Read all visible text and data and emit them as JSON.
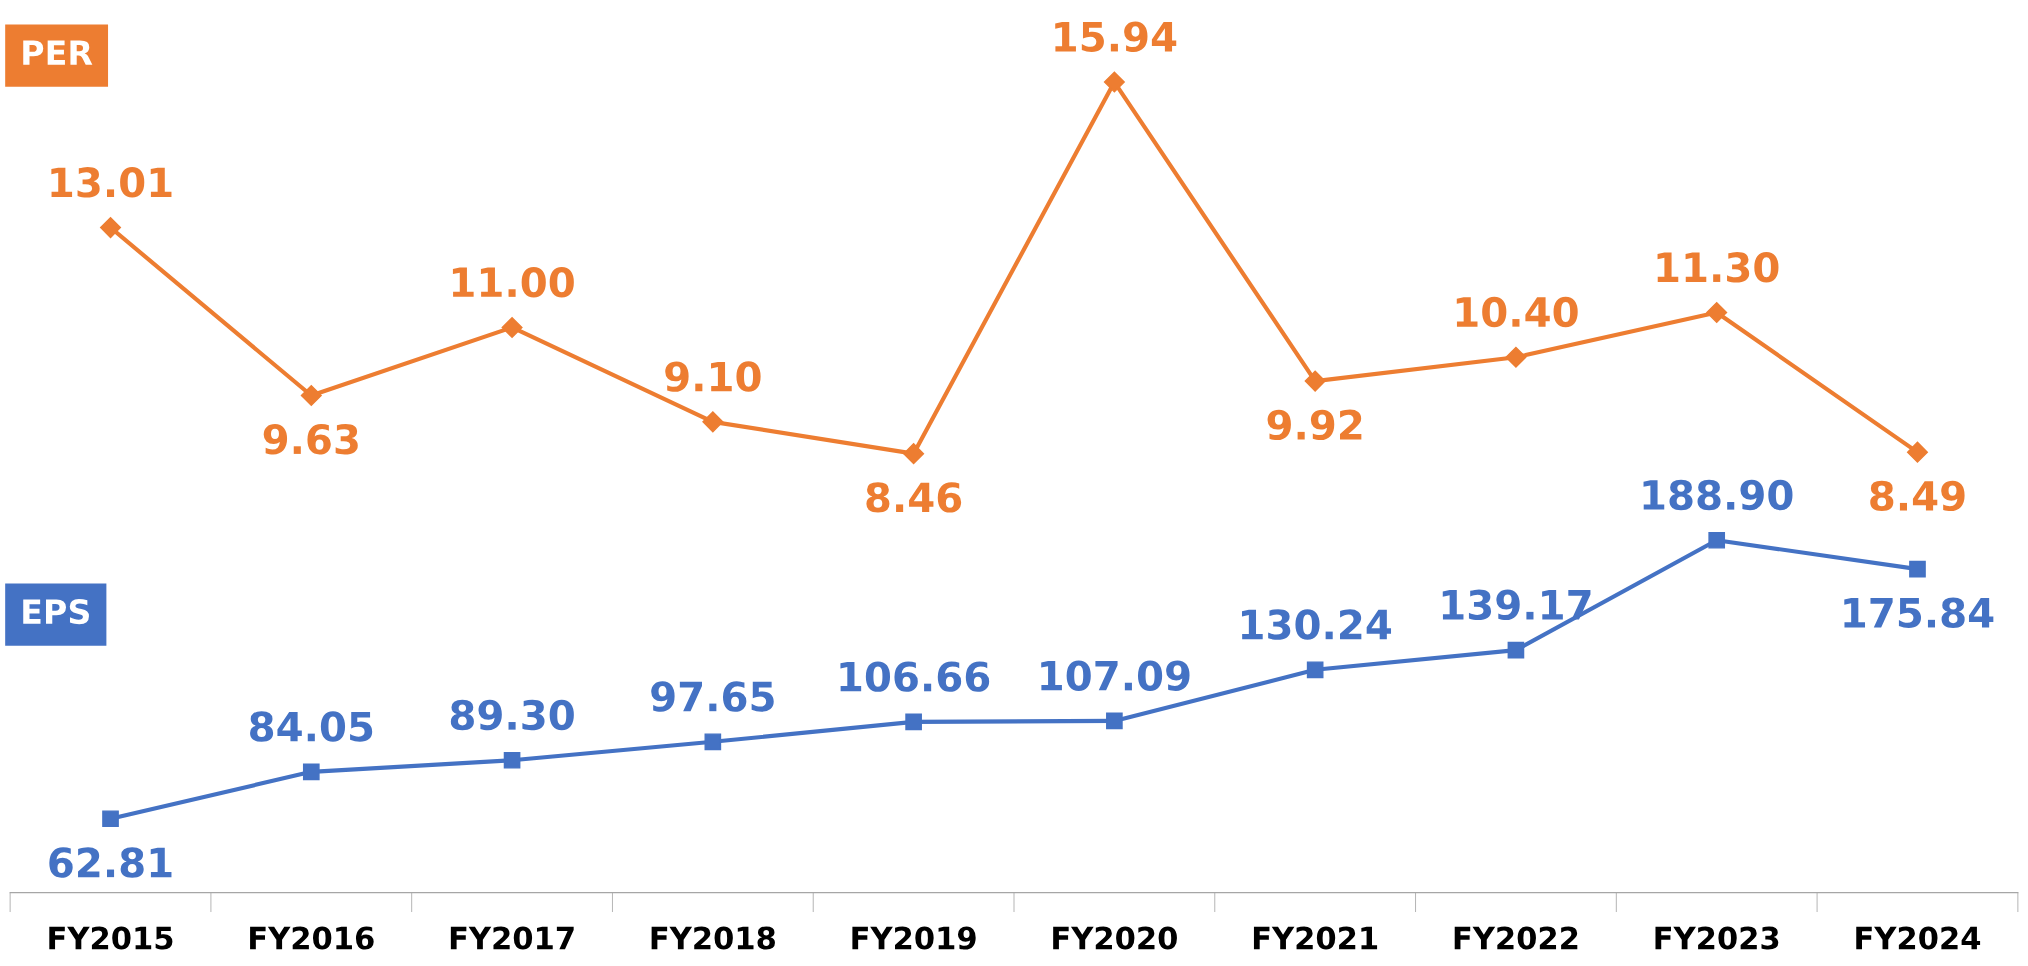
{
  "chart_data": [
    {
      "type": "line",
      "categories": [
        null,
        null,
        null,
        null,
        null,
        null,
        null,
        null,
        null,
        null
      ],
      "series": [
        {
          "name": "PER",
          "color": "#ed7d31",
          "marker": "diamond",
          "values": [
            13.01,
            9.63,
            11.0,
            9.1,
            8.46,
            15.94,
            9.92,
            10.4,
            11.3,
            8.49
          ],
          "value_labels": [
            "13.01",
            "9.63",
            "11.00",
            "9.10",
            "8.46",
            "15.94",
            "9.92",
            "10.40",
            "11.30",
            "8.49"
          ]
        }
      ],
      "tick_labels": false
    },
    {
      "type": "line",
      "categories": [
        "FY2015",
        "FY2016",
        "FY2017",
        "FY2018",
        "FY2019",
        "FY2020",
        "FY2021",
        "FY2022",
        "FY2023",
        "FY2024"
      ],
      "series": [
        {
          "name": "EPS",
          "color": "#4472c4",
          "marker": "square",
          "values": [
            62.81,
            84.05,
            89.3,
            97.65,
            106.66,
            107.09,
            130.24,
            139.17,
            188.9,
            175.84
          ],
          "value_labels": [
            "62.81",
            "84.05",
            "89.30",
            "97.65",
            "106.66",
            "107.09",
            "130.24",
            "139.17",
            "188.90",
            "175.84"
          ]
        }
      ],
      "tick_labels": "x"
    }
  ]
}
